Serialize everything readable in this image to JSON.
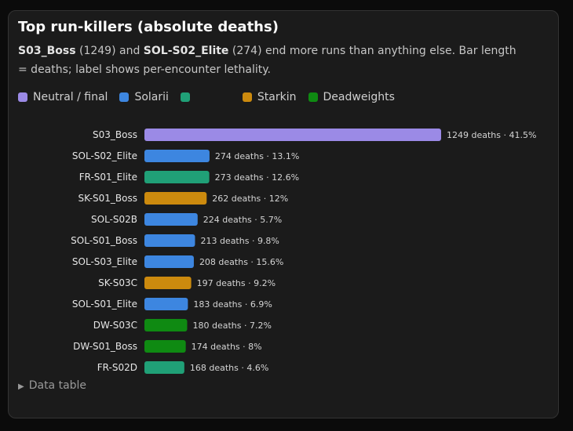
{
  "title": "Top run-killers (absolute deaths)",
  "subtitle": {
    "boss1": "S03_Boss",
    "boss1_count": "(1249)",
    "and": "and",
    "boss2": "SOL-S02_Elite",
    "boss2_count": "(274)",
    "rest": "end more runs than anything else. Bar length = deaths; label shows per-encounter lethality."
  },
  "legend": [
    {
      "key": "neutral",
      "label": "Neutral / final",
      "color": "#9b8ae6"
    },
    {
      "key": "solarii",
      "label": "Solarii",
      "color": "#3d86e0"
    },
    {
      "key": "frost",
      "label": "",
      "color": "#20a077"
    },
    {
      "key": "starkin",
      "label": "Starkin",
      "color": "#cc8a0e"
    },
    {
      "key": "deadweights",
      "label": "Deadweights",
      "color": "#0f8a12"
    }
  ],
  "chart_data": {
    "type": "bar",
    "orientation": "horizontal",
    "title": "Top run-killers (absolute deaths)",
    "xlabel": "",
    "ylabel": "",
    "categories": [
      "S03_Boss",
      "SOL-S02_Elite",
      "FR-S01_Elite",
      "SK-S01_Boss",
      "SOL-S02B",
      "SOL-S01_Boss",
      "SOL-S03_Elite",
      "SK-S03C",
      "SOL-S01_Elite",
      "DW-S03C",
      "DW-S01_Boss",
      "FR-S02D"
    ],
    "values": [
      1249,
      274,
      273,
      262,
      224,
      213,
      208,
      197,
      183,
      180,
      174,
      168
    ],
    "groups": [
      "neutral",
      "solarii",
      "frost",
      "starkin",
      "solarii",
      "solarii",
      "solarii",
      "starkin",
      "solarii",
      "deadweights",
      "deadweights",
      "frost"
    ],
    "labels": [
      "1249 deaths · 41.5%",
      "274 deaths · 13.1%",
      "273 deaths · 12.6%",
      "262 deaths · 12%",
      "224 deaths · 5.7%",
      "213 deaths · 9.8%",
      "208 deaths · 15.6%",
      "197 deaths · 9.2%",
      "183 deaths · 6.9%",
      "180 deaths · 7.2%",
      "174 deaths · 8%",
      "168 deaths · 4.6%"
    ],
    "xlim": [
      0,
      1249
    ],
    "grid": false,
    "legend": "top"
  },
  "footer": {
    "details_label": "Data table"
  }
}
